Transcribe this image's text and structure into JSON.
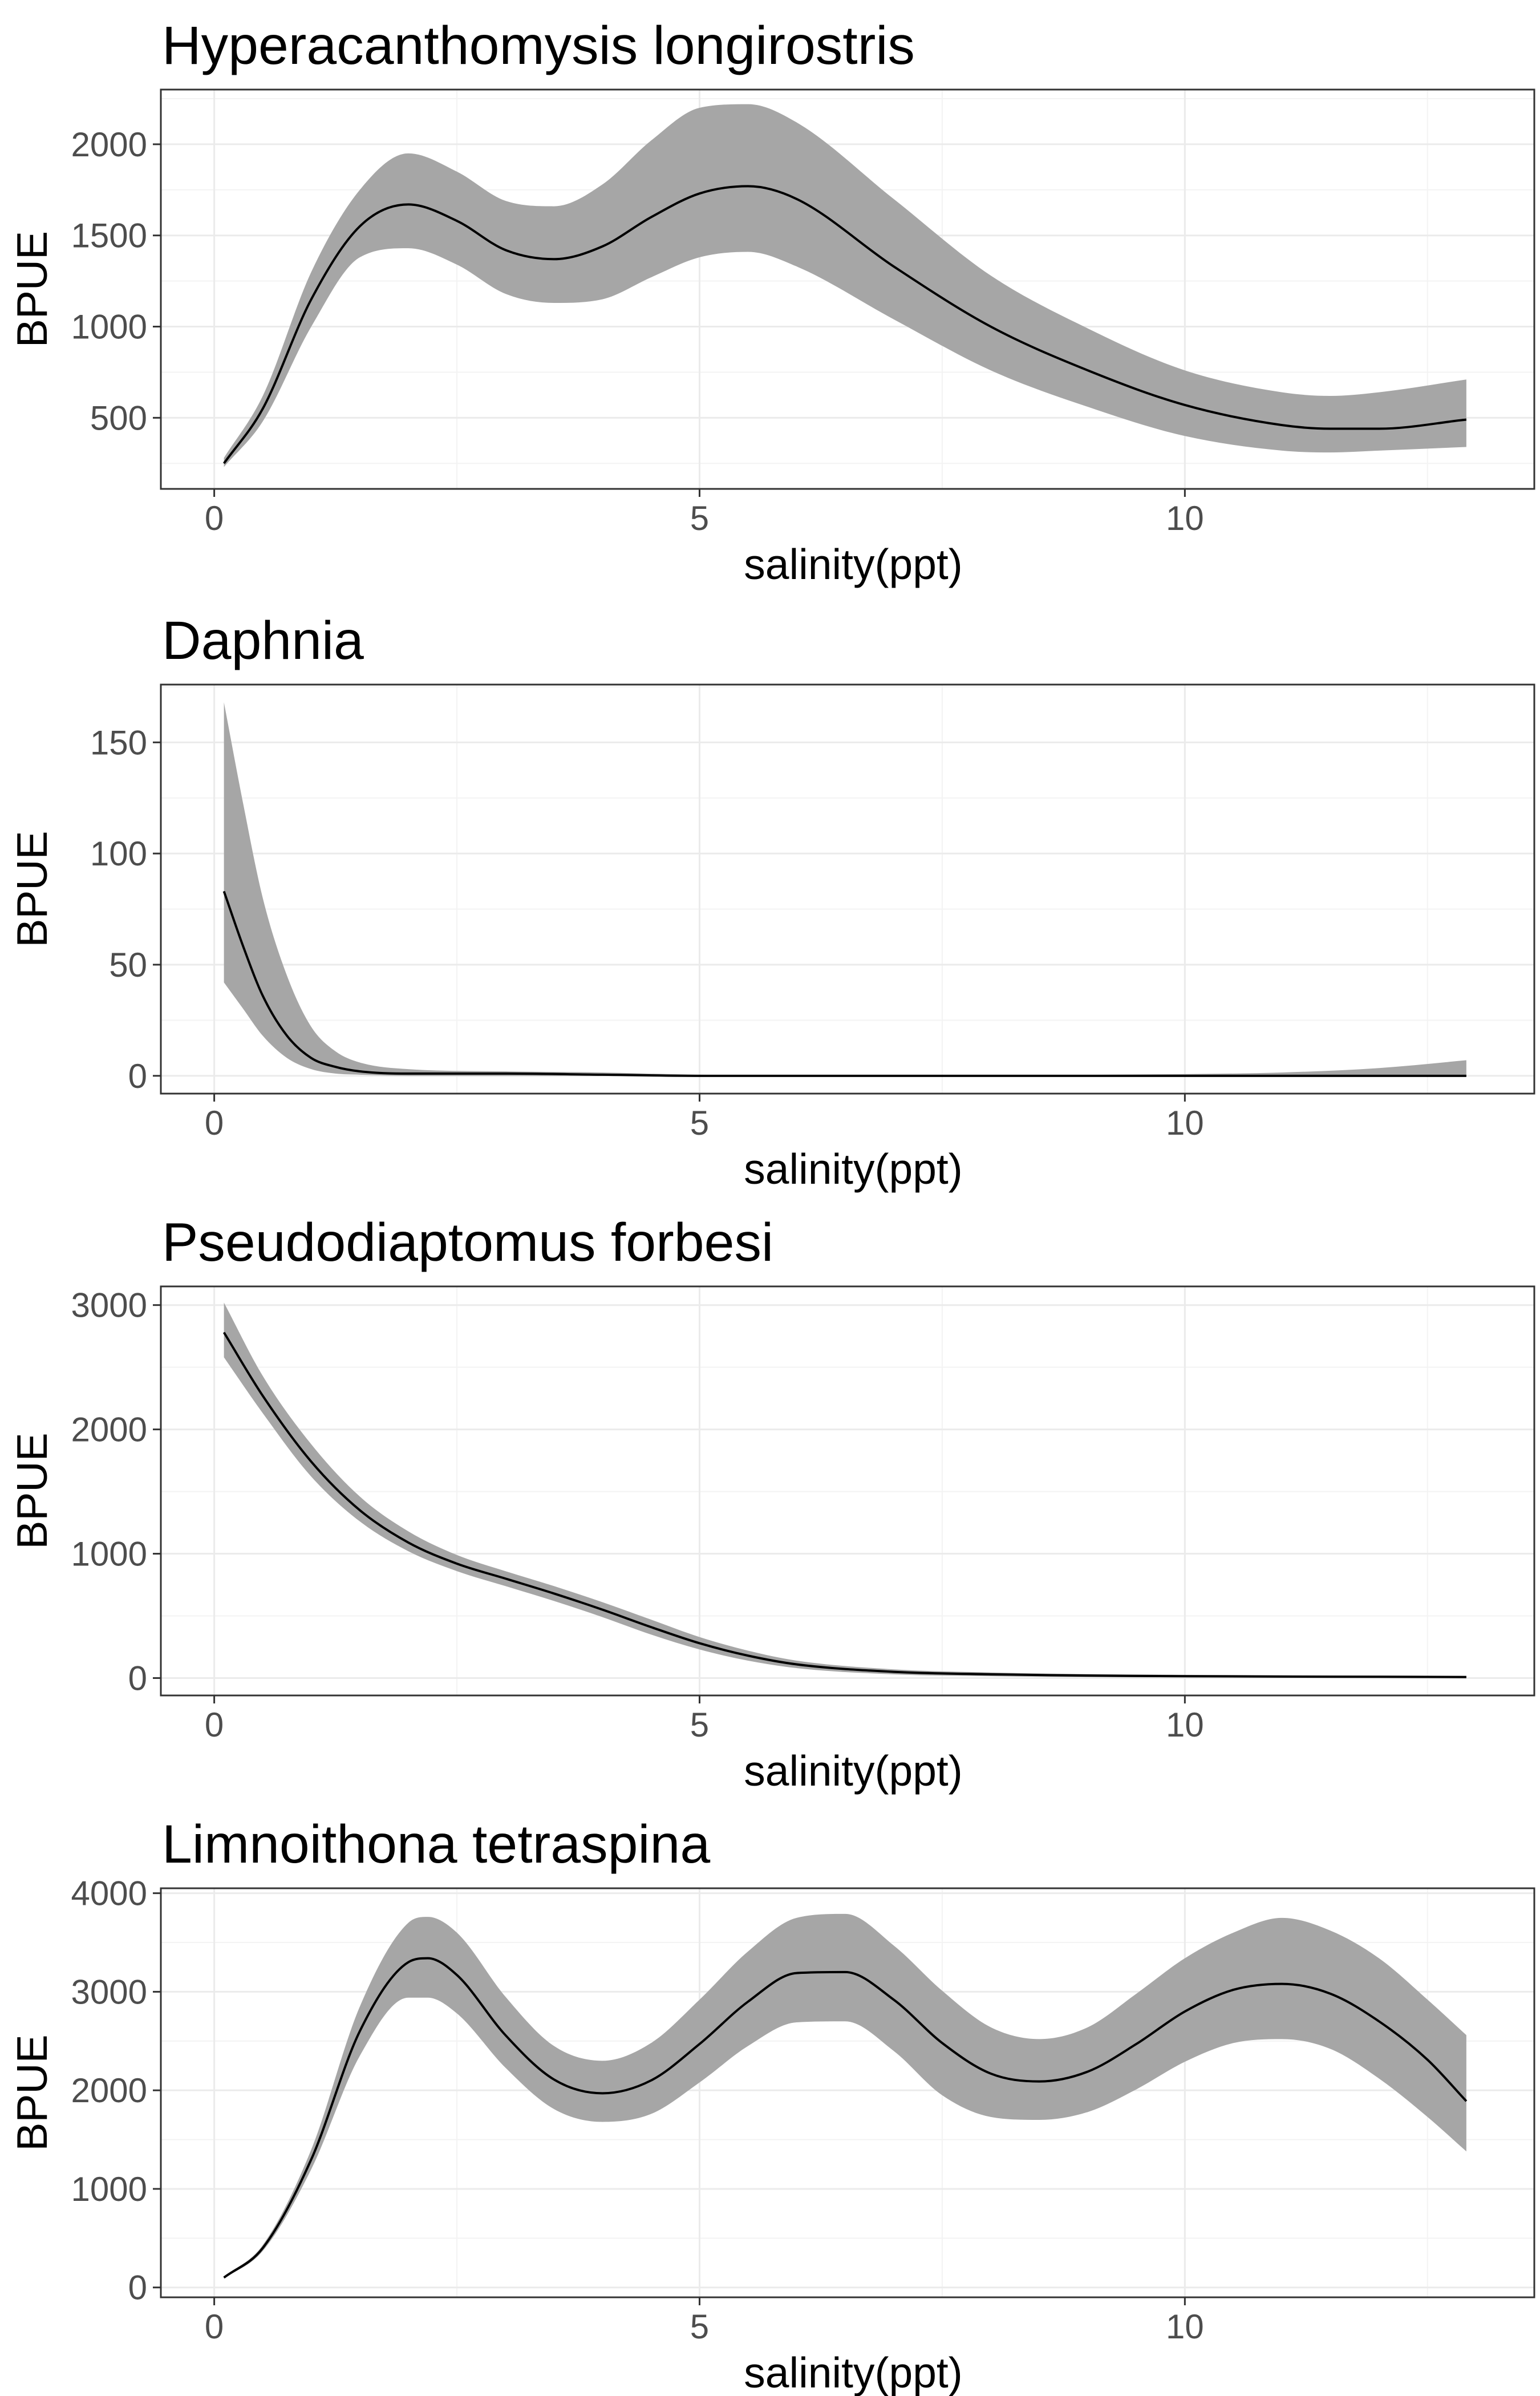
{
  "chart_data": [
    {
      "type": "line",
      "title": "Hyperacanthomysis longirostris",
      "xlabel": "salinity(ppt)",
      "ylabel": "BPUE",
      "xlim": [
        -0.55,
        13.6
      ],
      "ylim": [
        110,
        2300
      ],
      "xticks": [
        0,
        5,
        10
      ],
      "yticks": [
        500,
        1000,
        1500,
        2000
      ],
      "grid": true,
      "legend": "none",
      "ribbon_color": "#a6a6a6",
      "line_color": "#000000",
      "series": [
        {
          "x": [
            0.1,
            0.5,
            1.0,
            1.5,
            2.0,
            2.5,
            3.0,
            3.5,
            4.0,
            4.5,
            5.0,
            5.5,
            6.0,
            7.0,
            8.0,
            9.0,
            10.0,
            11.0,
            11.5,
            12.0,
            12.9
          ],
          "y": [
            250,
            550,
            1150,
            1550,
            1670,
            1580,
            1420,
            1370,
            1440,
            1600,
            1730,
            1770,
            1700,
            1330,
            1000,
            760,
            570,
            460,
            440,
            440,
            490
          ],
          "lower": [
            230,
            480,
            1000,
            1380,
            1430,
            1340,
            1180,
            1130,
            1150,
            1270,
            1380,
            1410,
            1330,
            1040,
            760,
            560,
            400,
            320,
            310,
            320,
            340
          ],
          "upper": [
            280,
            620,
            1300,
            1750,
            1950,
            1850,
            1690,
            1660,
            1780,
            2020,
            2200,
            2220,
            2120,
            1700,
            1280,
            990,
            760,
            640,
            620,
            640,
            710
          ]
        }
      ]
    },
    {
      "type": "line",
      "title": "Daphnia",
      "xlabel": "salinity(ppt)",
      "ylabel": "BPUE",
      "xlim": [
        -0.55,
        13.6
      ],
      "ylim": [
        -8,
        176
      ],
      "xticks": [
        0,
        5,
        10
      ],
      "yticks": [
        0,
        50,
        100,
        150
      ],
      "grid": true,
      "legend": "none",
      "ribbon_color": "#a6a6a6",
      "line_color": "#000000",
      "series": [
        {
          "x": [
            0.1,
            0.3,
            0.5,
            0.75,
            1.0,
            1.25,
            1.5,
            2.0,
            3.0,
            4.0,
            5.0,
            6.0,
            8.0,
            10.0,
            11.0,
            12.0,
            12.9
          ],
          "y": [
            83,
            58,
            36,
            18,
            8,
            4,
            2,
            1,
            1,
            0.5,
            0,
            0,
            0,
            0,
            0,
            0,
            0
          ],
          "lower": [
            42,
            30,
            18,
            8,
            3,
            1,
            0.5,
            0,
            0,
            0,
            0,
            0,
            0,
            0,
            0,
            0,
            0
          ],
          "upper": [
            168,
            122,
            80,
            45,
            22,
            11,
            6,
            3,
            2,
            1.5,
            0.5,
            0.3,
            0.3,
            0.8,
            1.5,
            3.5,
            7
          ]
        }
      ]
    },
    {
      "type": "line",
      "title": "Pseudodiaptomus forbesi",
      "xlabel": "salinity(ppt)",
      "ylabel": "BPUE",
      "xlim": [
        -0.55,
        13.6
      ],
      "ylim": [
        -140,
        3150
      ],
      "xticks": [
        0,
        5,
        10
      ],
      "yticks": [
        0,
        1000,
        2000,
        3000
      ],
      "grid": true,
      "legend": "none",
      "ribbon_color": "#a6a6a6",
      "line_color": "#000000",
      "series": [
        {
          "x": [
            0.1,
            0.5,
            1.0,
            1.5,
            2.0,
            2.5,
            3.0,
            3.5,
            4.0,
            4.5,
            5.0,
            5.5,
            6.0,
            7.0,
            8.0,
            9.0,
            10.0,
            11.0,
            12.0,
            12.9
          ],
          "y": [
            2780,
            2270,
            1740,
            1350,
            1090,
            920,
            800,
            680,
            550,
            410,
            280,
            180,
            110,
            50,
            30,
            20,
            15,
            12,
            10,
            8
          ],
          "lower": [
            2580,
            2130,
            1620,
            1260,
            1020,
            860,
            740,
            620,
            490,
            350,
            230,
            140,
            80,
            30,
            15,
            8,
            5,
            3,
            2,
            1
          ],
          "upper": [
            3020,
            2430,
            1880,
            1460,
            1180,
            990,
            860,
            740,
            610,
            470,
            330,
            220,
            140,
            70,
            45,
            32,
            26,
            22,
            20,
            18
          ]
        }
      ]
    },
    {
      "type": "line",
      "title": "Limnoithona tetraspina",
      "xlabel": "salinity(ppt)",
      "ylabel": "BPUE",
      "xlim": [
        -0.55,
        13.6
      ],
      "ylim": [
        -100,
        4050
      ],
      "xticks": [
        0,
        5,
        10
      ],
      "yticks": [
        0,
        1000,
        2000,
        3000,
        4000
      ],
      "grid": true,
      "legend": "none",
      "ribbon_color": "#a6a6a6",
      "line_color": "#000000",
      "series": [
        {
          "x": [
            0.1,
            0.5,
            1.0,
            1.5,
            2.0,
            2.2,
            2.5,
            3.0,
            3.5,
            4.0,
            4.5,
            5.0,
            5.5,
            6.0,
            6.5,
            7.0,
            7.5,
            8.0,
            8.5,
            9.0,
            9.5,
            10.0,
            10.5,
            11.0,
            11.5,
            12.0,
            12.5,
            12.9
          ],
          "y": [
            100,
            400,
            1300,
            2600,
            3300,
            3340,
            3170,
            2560,
            2110,
            1970,
            2100,
            2470,
            2900,
            3190,
            3200,
            2920,
            2480,
            2170,
            2090,
            2190,
            2470,
            2800,
            3020,
            3080,
            2980,
            2700,
            2310,
            1890
          ],
          "lower": [
            90,
            370,
            1200,
            2350,
            2940,
            2940,
            2780,
            2230,
            1810,
            1680,
            1760,
            2080,
            2450,
            2690,
            2700,
            2400,
            1950,
            1730,
            1700,
            1780,
            2010,
            2290,
            2480,
            2520,
            2420,
            2120,
            1730,
            1380
          ],
          "upper": [
            110,
            430,
            1400,
            2850,
            3700,
            3760,
            3600,
            2950,
            2450,
            2300,
            2480,
            2920,
            3410,
            3750,
            3790,
            3470,
            3010,
            2640,
            2520,
            2640,
            2980,
            3340,
            3600,
            3750,
            3620,
            3340,
            2920,
            2560
          ]
        }
      ]
    }
  ]
}
